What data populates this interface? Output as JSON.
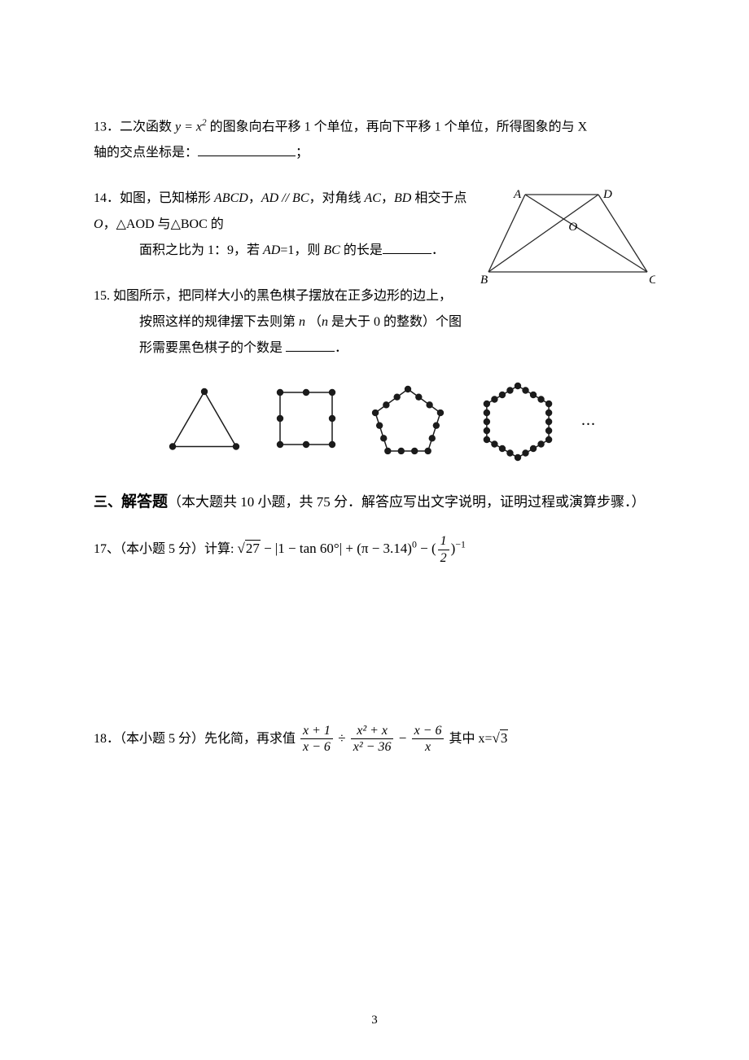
{
  "p13": {
    "num": "13．",
    "text_a": "二次函数 ",
    "eq": "y = x",
    "exp": "2",
    "text_b": " 的图象向右平移 1 个单位，再向下平移 1 个单位，所得图象的与 X",
    "text_c": "轴的交点坐标是：",
    "semi": "；"
  },
  "p14": {
    "num": "14．",
    "text_a": "如图，已知梯形 ",
    "ABCD": "ABCD",
    "text_b": "，",
    "ADpBC": "AD // BC",
    "text_c": "，对角线 ",
    "AC": "AC",
    "comma1": "，",
    "BD": "BD",
    "text_d": " 相交于点 ",
    "O": "O",
    "comma2": "，",
    "tri1": "△AOD",
    "text_e": " 与",
    "tri2": "△BOC",
    "text_f": " 的",
    "line2a": "面积之比为 1：9，若 ",
    "ADeq": "AD",
    "line2b": "=1，则 ",
    "BC": "BC",
    "line2c": " 的长是",
    "period": "．"
  },
  "p15": {
    "num": "15.",
    "text_a": " 如图所示，把同样大小的黑色棋子摆放在正多边形的边上，",
    "line2": "按照这样的规律摆下去则第 ",
    "n": "n",
    "paren_a": " （",
    "n2": "n",
    "paren_b": " 是大于 0 的整数）个图",
    "line3": "形需要黑色棋子的个数是 ",
    "period": "．"
  },
  "section3": {
    "label_a": "三、",
    "label_b": "解答题",
    "desc": "（本大题共 10 小题，共 75 分．解答应写出文字说明，证明过程或演算步骤．）"
  },
  "p17": {
    "num": "17、",
    "desc": "（本小题 5 分）计算: ",
    "sqrt_a": "√",
    "rad_a": "27",
    "minus1": " − |1 − tan 60°| + (π − 3.14)",
    "exp0": "0",
    "minus2": " − (",
    "frac_n": "1",
    "frac_d": "2",
    "exp_neg1": ")",
    "neg1": "−1"
  },
  "p18": {
    "num": "18．",
    "desc": "（本小题 5 分）先化简，再求值  ",
    "f1n": "x + 1",
    "f1d": "x − 6",
    "div": " ÷ ",
    "f2n": "x² + x",
    "f2d": "x² − 36",
    "minus": " − ",
    "f3n": "x − 6",
    "f3d": "x",
    "where": "     其中 x=",
    "sqrt3": "√",
    "rad3": "3"
  },
  "figure14": {
    "A": "A",
    "B": "B",
    "C": "C",
    "D": "D",
    "O": "O",
    "stroke": "#2a2a2a",
    "font": "italic 15px 'Times New Roman'"
  },
  "pattern": {
    "stroke": "#1b1b1b",
    "fill": "#1b1b1b",
    "ellipsis": "..."
  },
  "pagenum": "3"
}
